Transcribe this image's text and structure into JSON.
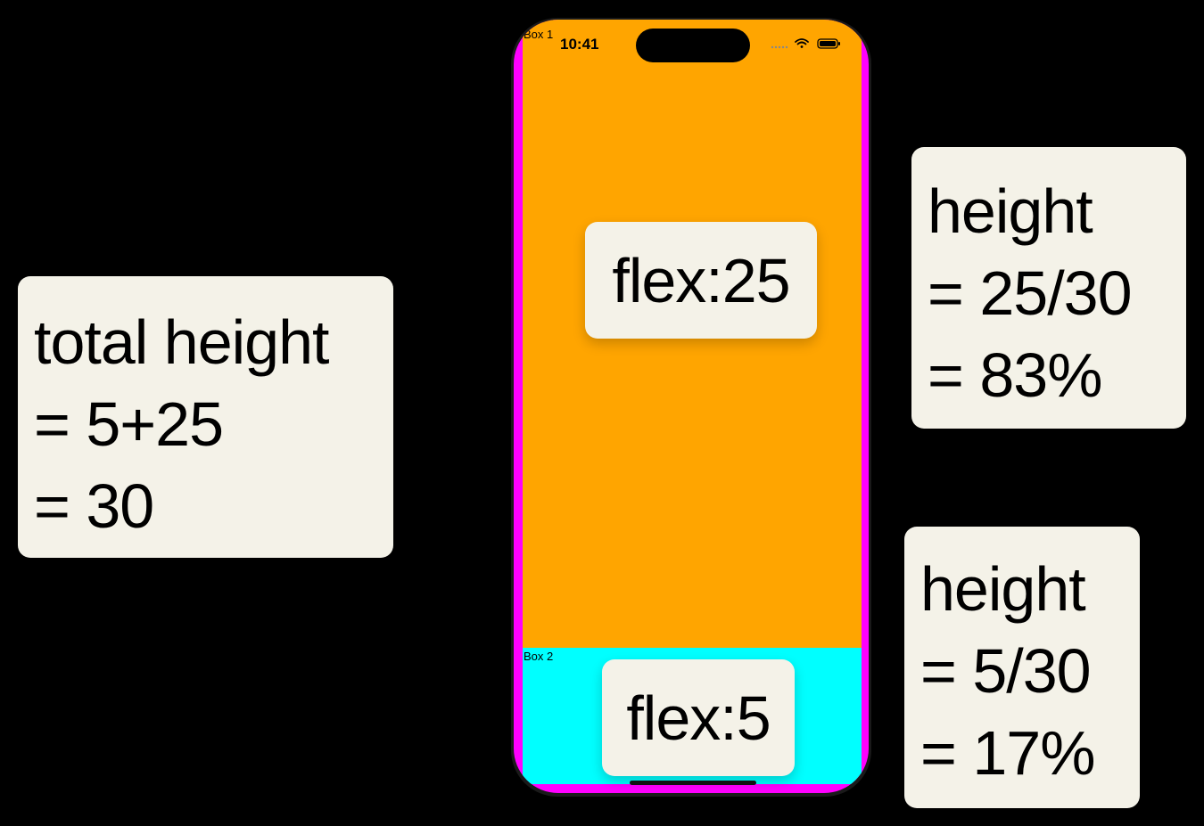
{
  "total_card": {
    "lines": [
      "total height",
      "= 5+25",
      "= 30"
    ]
  },
  "box1_card": {
    "lines": [
      "height",
      "= 25/30",
      "= 83%"
    ]
  },
  "box2_card": {
    "lines": [
      "height",
      "= 5/30",
      "= 17%"
    ]
  },
  "phone": {
    "status_time": "10:41",
    "box1": {
      "label": "Box 1",
      "flex_text": "flex:25",
      "color": "#ffa500",
      "flex": 25
    },
    "box2": {
      "label": "Box 2",
      "flex_text": "flex:5",
      "color": "#00ffff",
      "flex": 5
    },
    "frame_color": "#ff00ff"
  },
  "icons": [
    "cellular-signal-icon",
    "wifi-icon",
    "battery-icon"
  ]
}
